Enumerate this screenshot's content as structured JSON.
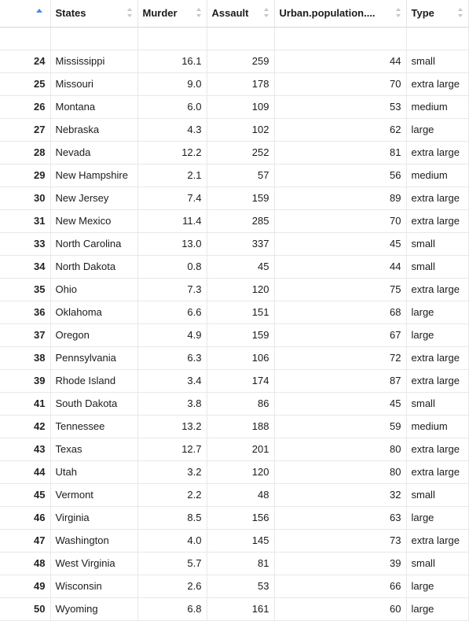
{
  "table": {
    "columns": [
      {
        "label": ""
      },
      {
        "label": "States"
      },
      {
        "label": "Murder"
      },
      {
        "label": "Assault"
      },
      {
        "label": "Urban.population...."
      },
      {
        "label": "Type"
      }
    ],
    "rows": [
      {
        "idx": "24",
        "state": "Mississippi",
        "murder": "16.1",
        "assault": "259",
        "urban": "44",
        "type": "small"
      },
      {
        "idx": "25",
        "state": "Missouri",
        "murder": "9.0",
        "assault": "178",
        "urban": "70",
        "type": "extra large"
      },
      {
        "idx": "26",
        "state": "Montana",
        "murder": "6.0",
        "assault": "109",
        "urban": "53",
        "type": "medium"
      },
      {
        "idx": "27",
        "state": "Nebraska",
        "murder": "4.3",
        "assault": "102",
        "urban": "62",
        "type": "large"
      },
      {
        "idx": "28",
        "state": "Nevada",
        "murder": "12.2",
        "assault": "252",
        "urban": "81",
        "type": "extra large"
      },
      {
        "idx": "29",
        "state": "New Hampshire",
        "murder": "2.1",
        "assault": "57",
        "urban": "56",
        "type": "medium"
      },
      {
        "idx": "30",
        "state": "New Jersey",
        "murder": "7.4",
        "assault": "159",
        "urban": "89",
        "type": "extra large"
      },
      {
        "idx": "31",
        "state": "New Mexico",
        "murder": "11.4",
        "assault": "285",
        "urban": "70",
        "type": "extra large"
      },
      {
        "idx": "33",
        "state": "North Carolina",
        "murder": "13.0",
        "assault": "337",
        "urban": "45",
        "type": "small"
      },
      {
        "idx": "34",
        "state": "North Dakota",
        "murder": "0.8",
        "assault": "45",
        "urban": "44",
        "type": "small"
      },
      {
        "idx": "35",
        "state": "Ohio",
        "murder": "7.3",
        "assault": "120",
        "urban": "75",
        "type": "extra large"
      },
      {
        "idx": "36",
        "state": "Oklahoma",
        "murder": "6.6",
        "assault": "151",
        "urban": "68",
        "type": "large"
      },
      {
        "idx": "37",
        "state": "Oregon",
        "murder": "4.9",
        "assault": "159",
        "urban": "67",
        "type": "large"
      },
      {
        "idx": "38",
        "state": "Pennsylvania",
        "murder": "6.3",
        "assault": "106",
        "urban": "72",
        "type": "extra large"
      },
      {
        "idx": "39",
        "state": "Rhode Island",
        "murder": "3.4",
        "assault": "174",
        "urban": "87",
        "type": "extra large"
      },
      {
        "idx": "41",
        "state": "South Dakota",
        "murder": "3.8",
        "assault": "86",
        "urban": "45",
        "type": "small"
      },
      {
        "idx": "42",
        "state": "Tennessee",
        "murder": "13.2",
        "assault": "188",
        "urban": "59",
        "type": "medium"
      },
      {
        "idx": "43",
        "state": "Texas",
        "murder": "12.7",
        "assault": "201",
        "urban": "80",
        "type": "extra large"
      },
      {
        "idx": "44",
        "state": "Utah",
        "murder": "3.2",
        "assault": "120",
        "urban": "80",
        "type": "extra large"
      },
      {
        "idx": "45",
        "state": "Vermont",
        "murder": "2.2",
        "assault": "48",
        "urban": "32",
        "type": "small"
      },
      {
        "idx": "46",
        "state": "Virginia",
        "murder": "8.5",
        "assault": "156",
        "urban": "63",
        "type": "large"
      },
      {
        "idx": "47",
        "state": "Washington",
        "murder": "4.0",
        "assault": "145",
        "urban": "73",
        "type": "extra large"
      },
      {
        "idx": "48",
        "state": "West Virginia",
        "murder": "5.7",
        "assault": "81",
        "urban": "39",
        "type": "small"
      },
      {
        "idx": "49",
        "state": "Wisconsin",
        "murder": "2.6",
        "assault": "53",
        "urban": "66",
        "type": "large"
      },
      {
        "idx": "50",
        "state": "Wyoming",
        "murder": "6.8",
        "assault": "161",
        "urban": "60",
        "type": "large"
      }
    ]
  },
  "colors": {
    "sort_active": "#4a89dc",
    "sort_inactive": "#c6c6c6",
    "grid": "#e8e8e8"
  },
  "icons": {
    "sort_active": "sort-ascending-icon",
    "sort_inactive": "sort-icon"
  }
}
